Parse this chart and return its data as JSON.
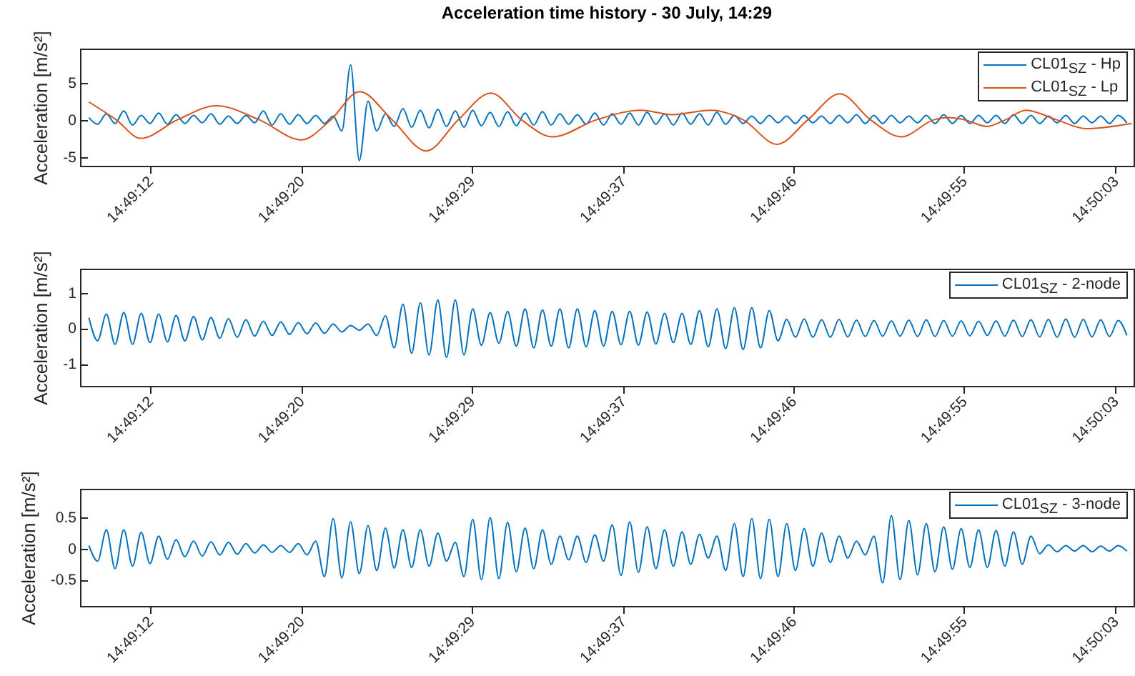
{
  "chart_data": [
    {
      "type": "line",
      "title": "Acceleration time history - 30 July, 14:29",
      "ylabel": "Acceleration [m/s²]",
      "legend": "top right",
      "xlim": [
        14.81897,
        14.83443
      ],
      "xticks": [
        {
          "value": 14.82,
          "label": "14:49:12"
        },
        {
          "value": 14.822222,
          "label": "14:49:20"
        },
        {
          "value": 14.824722,
          "label": "14:49:29"
        },
        {
          "value": 14.826944,
          "label": "14:49:37"
        },
        {
          "value": 14.829444,
          "label": "14:49:46"
        },
        {
          "value": 14.831944,
          "label": "14:49:55"
        },
        {
          "value": 14.834167,
          "label": "14:50:03"
        }
      ],
      "ylim": [
        -6.2,
        9.6
      ],
      "yticks": [
        -5,
        0,
        5
      ],
      "x": [
        14.8191,
        14.819228,
        14.819356,
        14.819484,
        14.819612,
        14.81974,
        14.819868,
        14.819996,
        14.820124,
        14.820252,
        14.82038,
        14.820508,
        14.820636,
        14.820764,
        14.820892,
        14.82102,
        14.821148,
        14.821276,
        14.821404,
        14.821532,
        14.82166,
        14.821788,
        14.821916,
        14.822044,
        14.822172,
        14.8223,
        14.822428,
        14.822556,
        14.822684,
        14.822812,
        14.82294,
        14.823068,
        14.823196,
        14.823324,
        14.823452,
        14.82358,
        14.823708,
        14.823836,
        14.823964,
        14.824092,
        14.82422,
        14.824348,
        14.824476,
        14.824604,
        14.824732,
        14.82486,
        14.824988,
        14.825116,
        14.825244,
        14.825372,
        14.8255,
        14.825628,
        14.825756,
        14.825884,
        14.826012,
        14.82614,
        14.826268,
        14.826396,
        14.826524,
        14.826652,
        14.82678,
        14.826908,
        14.827036,
        14.827164,
        14.827292,
        14.82742,
        14.827548,
        14.827676,
        14.827804,
        14.827932,
        14.82806,
        14.828188,
        14.828316,
        14.828444,
        14.828572,
        14.8287,
        14.828828,
        14.828956,
        14.829084,
        14.829212,
        14.82934,
        14.829468,
        14.829596,
        14.829724,
        14.829852,
        14.82998,
        14.830108,
        14.830236,
        14.830364,
        14.830492,
        14.83062,
        14.830748,
        14.830876,
        14.831004,
        14.831132,
        14.83126,
        14.831388,
        14.831516,
        14.831644,
        14.831772,
        14.8319,
        14.832028,
        14.832156,
        14.832284,
        14.832412,
        14.83254,
        14.832668,
        14.832796,
        14.832924,
        14.833052,
        14.83318,
        14.833308,
        14.833436,
        14.833564,
        14.833692,
        14.83382,
        14.833948,
        14.834076,
        14.834204,
        14.834332
      ],
      "series": [
        {
          "name": "CL01$_{SZ}$ - Hp",
          "color": "#0072bd",
          "values": [
            0.3,
            -0.6,
            0.8,
            -0.5,
            1.2,
            -0.7,
            0.6,
            -0.5,
            0.9,
            -0.6,
            0.7,
            -0.5,
            0.6,
            -0.4,
            0.8,
            -0.6,
            0.5,
            -0.5,
            0.6,
            -0.4,
            1.2,
            -0.7,
            0.8,
            -0.6,
            0.7,
            -0.5,
            0.6,
            -0.5,
            0.5,
            -1.5,
            7.4,
            -5.5,
            2.5,
            -1.5,
            0.8,
            -0.9,
            1.5,
            -1.0,
            1.3,
            -1.1,
            1.4,
            -0.9,
            1.2,
            -1.0,
            1.3,
            -0.8,
            1.0,
            -0.9,
            1.1,
            -0.8,
            0.9,
            -0.7,
            1.1,
            -0.7,
            0.8,
            -0.6,
            0.7,
            -0.6,
            0.9,
            -0.7,
            0.8,
            -0.6,
            0.9,
            -0.7,
            1.0,
            -0.6,
            0.8,
            -0.7,
            0.9,
            -0.6,
            0.8,
            -0.7,
            1.0,
            -0.6,
            0.6,
            -0.5,
            0.5,
            -0.5,
            0.6,
            -0.4,
            0.5,
            -0.5,
            0.6,
            -0.4,
            0.5,
            -0.5,
            0.6,
            -0.4,
            0.7,
            -0.5,
            0.6,
            -0.5,
            0.6,
            -0.4,
            0.5,
            -0.4,
            0.6,
            -0.5,
            0.7,
            -0.5,
            0.6,
            -0.5,
            0.6,
            -0.4,
            0.6,
            -0.5,
            0.7,
            -0.5,
            0.6,
            -0.5,
            0.5,
            -0.4,
            0.6,
            -0.5,
            0.5,
            -0.4,
            0.5,
            -0.5,
            0.6,
            -0.4
          ]
        },
        {
          "name": "CL01$_{SZ}$ - Lp",
          "color": "#d95319",
          "x": [
            14.8191,
            14.8195,
            14.81986,
            14.8204,
            14.82097,
            14.8216,
            14.82222,
            14.82265,
            14.82307,
            14.82355,
            14.82405,
            14.82452,
            14.825,
            14.82545,
            14.8259,
            14.82655,
            14.8272,
            14.82766,
            14.82823,
            14.8287,
            14.8292,
            14.82965,
            14.83012,
            14.83057,
            14.83102,
            14.8315,
            14.83171,
            14.83195,
            14.83228,
            14.83255,
            14.83285,
            14.8333,
            14.83374,
            14.8344
          ],
          "values": [
            2.4,
            0,
            -2.5,
            0,
            1.9,
            0,
            -2.7,
            0,
            3.8,
            0,
            -4.2,
            0,
            3.6,
            0,
            -2.3,
            0,
            1.3,
            0.7,
            1.3,
            0,
            -3.3,
            0,
            3.5,
            0,
            -2.3,
            0,
            0.3,
            0,
            -0.9,
            0,
            1.3,
            0,
            -1.2,
            -0.5
          ]
        }
      ]
    },
    {
      "type": "line",
      "ylabel": "Acceleration [m/s²]",
      "legend": "top right",
      "xlim": [
        14.81897,
        14.83443
      ],
      "xticks": [
        {
          "value": 14.82,
          "label": "14:49:12"
        },
        {
          "value": 14.822222,
          "label": "14:49:20"
        },
        {
          "value": 14.824722,
          "label": "14:49:29"
        },
        {
          "value": 14.826944,
          "label": "14:49:37"
        },
        {
          "value": 14.829444,
          "label": "14:49:46"
        },
        {
          "value": 14.831944,
          "label": "14:49:55"
        },
        {
          "value": 14.834167,
          "label": "14:50:03"
        }
      ],
      "ylim": [
        -1.62,
        1.68
      ],
      "yticks": [
        -1,
        0,
        1
      ],
      "x": [
        14.8191,
        14.819228,
        14.819356,
        14.819484,
        14.819612,
        14.81974,
        14.819868,
        14.819996,
        14.820124,
        14.820252,
        14.82038,
        14.820508,
        14.820636,
        14.820764,
        14.820892,
        14.82102,
        14.821148,
        14.821276,
        14.821404,
        14.821532,
        14.82166,
        14.821788,
        14.821916,
        14.822044,
        14.822172,
        14.8223,
        14.822428,
        14.822556,
        14.822684,
        14.822812,
        14.82294,
        14.823068,
        14.823196,
        14.823324,
        14.823452,
        14.82358,
        14.823708,
        14.823836,
        14.823964,
        14.824092,
        14.82422,
        14.824348,
        14.824476,
        14.824604,
        14.824732,
        14.82486,
        14.824988,
        14.825116,
        14.825244,
        14.825372,
        14.8255,
        14.825628,
        14.825756,
        14.825884,
        14.826012,
        14.82614,
        14.826268,
        14.826396,
        14.826524,
        14.826652,
        14.82678,
        14.826908,
        14.827036,
        14.827164,
        14.827292,
        14.82742,
        14.827548,
        14.827676,
        14.827804,
        14.827932,
        14.82806,
        14.828188,
        14.828316,
        14.828444,
        14.828572,
        14.8287,
        14.828828,
        14.828956,
        14.829084,
        14.829212,
        14.82934,
        14.829468,
        14.829596,
        14.829724,
        14.829852,
        14.82998,
        14.830108,
        14.830236,
        14.830364,
        14.830492,
        14.83062,
        14.830748,
        14.830876,
        14.831004,
        14.831132,
        14.83126,
        14.831388,
        14.831516,
        14.831644,
        14.831772,
        14.8319,
        14.832028,
        14.832156,
        14.832284,
        14.832412,
        14.83254,
        14.832668,
        14.832796,
        14.832924,
        14.833052,
        14.83318,
        14.833308,
        14.833436,
        14.833564,
        14.833692,
        14.83382,
        14.833948,
        14.834076,
        14.834204,
        14.834332
      ],
      "series": [
        {
          "name": "CL01$_{SZ}$ - 2-node",
          "color": "#0072bd",
          "values": [
            0.3,
            -0.35,
            0.4,
            -0.45,
            0.45,
            -0.45,
            0.42,
            -0.4,
            0.4,
            -0.38,
            0.36,
            -0.35,
            0.33,
            -0.32,
            0.3,
            -0.28,
            0.27,
            -0.25,
            0.24,
            -0.22,
            0.2,
            -0.2,
            0.18,
            -0.17,
            0.16,
            -0.15,
            0.15,
            -0.14,
            0.12,
            -0.1,
            0.08,
            -0.05,
            0.12,
            -0.2,
            0.35,
            -0.55,
            0.68,
            -0.7,
            0.72,
            -0.75,
            0.8,
            -0.82,
            0.8,
            -0.75,
            0.55,
            -0.48,
            0.45,
            -0.42,
            0.48,
            -0.5,
            0.55,
            -0.55,
            0.52,
            -0.5,
            0.55,
            -0.55,
            0.55,
            -0.52,
            0.5,
            -0.5,
            0.48,
            -0.46,
            0.48,
            -0.47,
            0.46,
            -0.44,
            0.42,
            -0.4,
            0.42,
            -0.45,
            0.5,
            -0.52,
            0.55,
            -0.57,
            0.58,
            -0.6,
            0.58,
            -0.55,
            0.5,
            -0.35,
            0.25,
            -0.25,
            0.26,
            -0.25,
            0.24,
            -0.25,
            0.25,
            -0.24,
            0.23,
            -0.23,
            0.22,
            -0.22,
            0.21,
            -0.22,
            0.23,
            -0.23,
            0.24,
            -0.23,
            0.22,
            -0.22,
            0.21,
            -0.21,
            0.2,
            -0.2,
            0.21,
            -0.22,
            0.23,
            -0.23,
            0.24,
            -0.24,
            0.25,
            -0.25,
            0.26,
            -0.25,
            0.25,
            -0.24,
            0.24,
            -0.23,
            0.22,
            -0.2
          ]
        }
      ]
    },
    {
      "type": "line",
      "ylabel": "Acceleration [m/s²]",
      "legend": "top right",
      "xlim": [
        14.81897,
        14.83443
      ],
      "xticks": [
        {
          "value": 14.82,
          "label": "14:49:12"
        },
        {
          "value": 14.822222,
          "label": "14:49:20"
        },
        {
          "value": 14.824722,
          "label": "14:49:29"
        },
        {
          "value": 14.826944,
          "label": "14:49:37"
        },
        {
          "value": 14.829444,
          "label": "14:49:46"
        },
        {
          "value": 14.831944,
          "label": "14:49:55"
        },
        {
          "value": 14.834167,
          "label": "14:50:03"
        }
      ],
      "ylim": [
        -0.92,
        0.96
      ],
      "yticks": [
        -0.5,
        0,
        0.5
      ],
      "x": [
        14.8191,
        14.819228,
        14.819356,
        14.819484,
        14.819612,
        14.81974,
        14.819868,
        14.819996,
        14.820124,
        14.820252,
        14.82038,
        14.820508,
        14.820636,
        14.820764,
        14.820892,
        14.82102,
        14.821148,
        14.821276,
        14.821404,
        14.821532,
        14.82166,
        14.821788,
        14.821916,
        14.822044,
        14.822172,
        14.8223,
        14.822428,
        14.822556,
        14.822684,
        14.822812,
        14.82294,
        14.823068,
        14.823196,
        14.823324,
        14.823452,
        14.82358,
        14.823708,
        14.823836,
        14.823964,
        14.824092,
        14.82422,
        14.824348,
        14.824476,
        14.824604,
        14.824732,
        14.82486,
        14.824988,
        14.825116,
        14.825244,
        14.825372,
        14.8255,
        14.825628,
        14.825756,
        14.825884,
        14.826012,
        14.82614,
        14.826268,
        14.826396,
        14.826524,
        14.826652,
        14.82678,
        14.826908,
        14.827036,
        14.827164,
        14.827292,
        14.82742,
        14.827548,
        14.827676,
        14.827804,
        14.827932,
        14.82806,
        14.828188,
        14.828316,
        14.828444,
        14.828572,
        14.8287,
        14.828828,
        14.828956,
        14.829084,
        14.829212,
        14.82934,
        14.829468,
        14.829596,
        14.829724,
        14.829852,
        14.82998,
        14.830108,
        14.830236,
        14.830364,
        14.830492,
        14.83062,
        14.830748,
        14.830876,
        14.831004,
        14.831132,
        14.83126,
        14.831388,
        14.831516,
        14.831644,
        14.831772,
        14.8319,
        14.832028,
        14.832156,
        14.832284,
        14.832412,
        14.83254,
        14.832668,
        14.832796,
        14.832924,
        14.833052,
        14.83318,
        14.833308,
        14.833436,
        14.833564,
        14.833692,
        14.83382,
        14.833948,
        14.834076,
        14.834204,
        14.834332
      ],
      "series": [
        {
          "name": "CL01$_{SZ}$ - 3-node",
          "color": "#0072bd",
          "values": [
            0.05,
            -0.2,
            0.3,
            -0.32,
            0.3,
            -0.28,
            0.26,
            -0.24,
            0.2,
            -0.17,
            0.14,
            -0.13,
            0.12,
            -0.12,
            0.11,
            -0.1,
            0.1,
            -0.09,
            0.08,
            -0.07,
            0.06,
            -0.06,
            0.05,
            -0.06,
            0.08,
            -0.1,
            0.12,
            -0.45,
            0.48,
            -0.47,
            0.43,
            -0.4,
            0.37,
            -0.35,
            0.33,
            -0.31,
            0.3,
            -0.3,
            0.3,
            -0.28,
            0.25,
            -0.2,
            0.1,
            -0.45,
            0.47,
            -0.5,
            0.5,
            -0.48,
            0.42,
            -0.37,
            0.33,
            -0.32,
            0.3,
            -0.25,
            0.2,
            -0.18,
            0.2,
            -0.22,
            0.22,
            -0.2,
            0.38,
            -0.43,
            0.43,
            -0.38,
            0.35,
            -0.32,
            0.3,
            -0.28,
            0.27,
            -0.25,
            0.23,
            -0.15,
            0.2,
            -0.35,
            0.4,
            -0.45,
            0.48,
            -0.48,
            0.47,
            -0.45,
            0.4,
            -0.35,
            0.32,
            -0.28,
            0.25,
            -0.22,
            0.2,
            -0.15,
            0.12,
            -0.1,
            0.2,
            -0.55,
            0.53,
            -0.5,
            0.45,
            -0.42,
            0.4,
            -0.37,
            0.35,
            -0.33,
            0.32,
            -0.3,
            0.3,
            -0.3,
            0.29,
            -0.28,
            0.27,
            -0.25,
            0.2,
            -0.08,
            0.06,
            -0.05,
            0.05,
            -0.04,
            0.05,
            -0.05,
            0.04,
            -0.04,
            0.05,
            -0.04
          ]
        }
      ]
    }
  ]
}
